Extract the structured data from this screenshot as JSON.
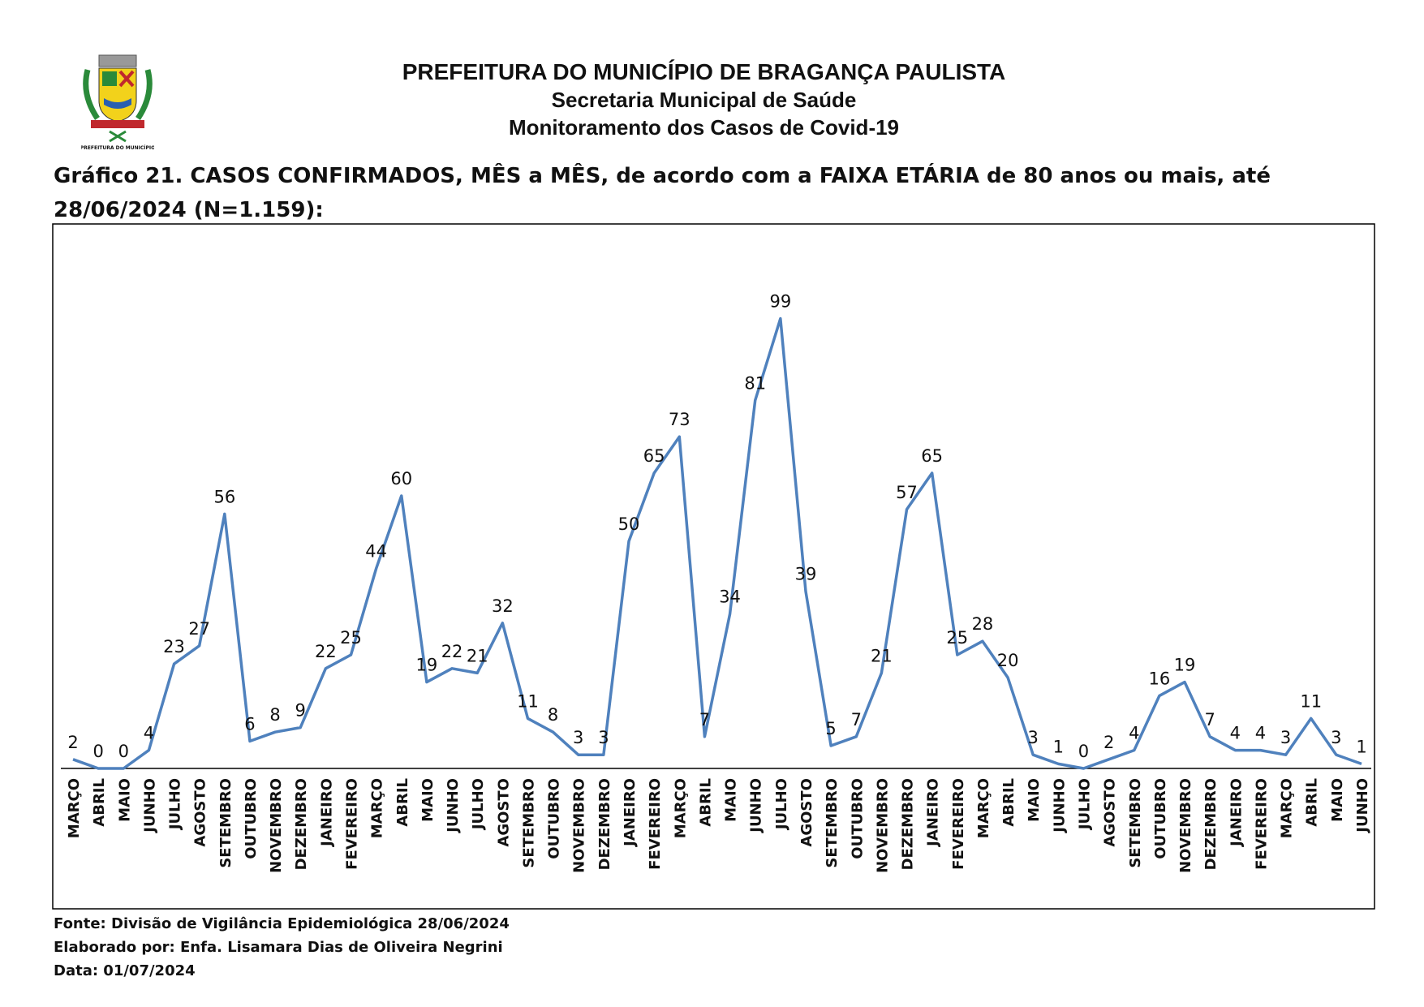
{
  "header": {
    "line1": "PREFEITURA DO MUNICÍPIO DE BRAGANÇA PAULISTA",
    "line2": "Secretaria Municipal de Saúde",
    "line3": "Monitoramento dos Casos de Covid-19",
    "logo_text": "PREFEITURA DO MUNICÍPIO DE BRAGANÇA PAULISTA"
  },
  "chart_data": {
    "type": "line",
    "title": "Gráfico 21. CASOS CONFIRMADOS, MÊS a MÊS, de acordo com a FAIXA ETÁRIA de 80 anos ou mais, até 28/06/2024 (N=1.159):",
    "xlabel": "",
    "ylabel": "",
    "ylim": [
      0,
      105
    ],
    "grid": false,
    "legend": "none",
    "series_color": "#4F81BD",
    "categories": [
      "MARÇO",
      "ABRIL",
      "MAIO",
      "JUNHO",
      "JULHO",
      "AGOSTO",
      "SETEMBRO",
      "OUTUBRO",
      "NOVEMBRO",
      "DEZEMBRO",
      "JANEIRO",
      "FEVEREIRO",
      "MARÇO",
      "ABRIL",
      "MAIO",
      "JUNHO",
      "JULHO",
      "AGOSTO",
      "SETEMBRO",
      "OUTUBRO",
      "NOVEMBRO",
      "DEZEMBRO",
      "JANEIRO",
      "FEVEREIRO",
      "MARÇO",
      "ABRIL",
      "MAIO",
      "JUNHO",
      "JULHO",
      "AGOSTO",
      "SETEMBRO",
      "OUTUBRO",
      "NOVEMBRO",
      "DEZEMBRO",
      "JANEIRO",
      "FEVEREIRO",
      "MARÇO",
      "ABRIL",
      "MAIO",
      "JUNHO",
      "JULHO",
      "AGOSTO",
      "SETEMBRO",
      "OUTUBRO",
      "NOVEMBRO",
      "DEZEMBRO",
      "JANEIRO",
      "FEVEREIRO",
      "MARÇO",
      "ABRIL",
      "MAIO",
      "JUNHO"
    ],
    "values": [
      2,
      0,
      0,
      4,
      23,
      27,
      56,
      6,
      8,
      9,
      22,
      25,
      44,
      60,
      19,
      22,
      21,
      32,
      11,
      8,
      3,
      3,
      50,
      65,
      73,
      7,
      34,
      81,
      99,
      39,
      5,
      7,
      21,
      57,
      65,
      25,
      28,
      20,
      3,
      1,
      0,
      2,
      4,
      16,
      19,
      7,
      4,
      4,
      3,
      11,
      3,
      1
    ]
  },
  "footer": {
    "source": "Fonte: Divisão de Vigilância Epidemiológica 28/06/2024",
    "author": "Elaborado por: Enfa. Lisamara Dias de Oliveira Negrini",
    "date": "Data: 01/07/2024"
  }
}
